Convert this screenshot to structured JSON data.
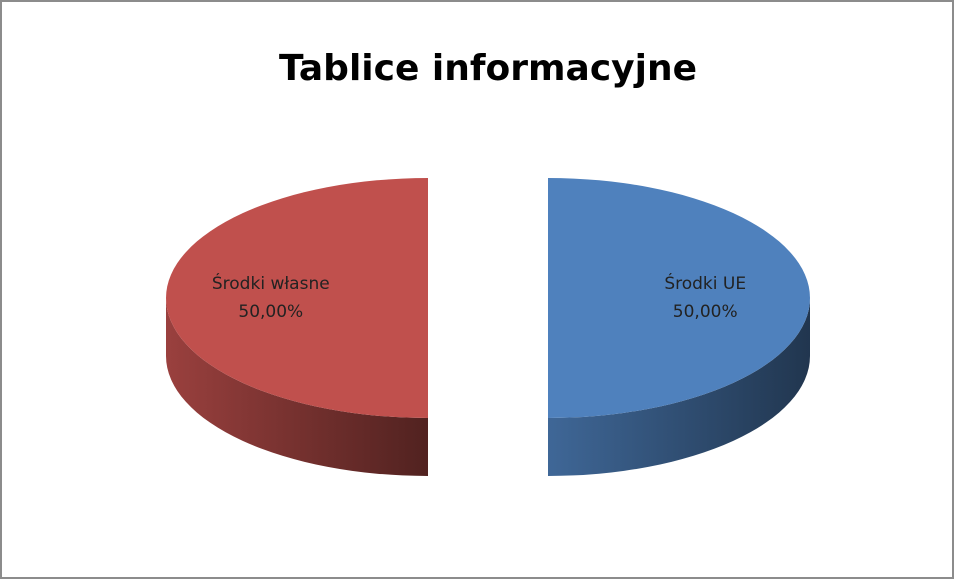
{
  "chart_data": {
    "type": "pie",
    "title": "Tablice informacyjne",
    "categories": [
      "Środki UE",
      "Środki własne"
    ],
    "values": [
      50,
      50
    ],
    "value_labels": [
      "50,00%",
      "50,00%"
    ],
    "colors": [
      "#4f81bd",
      "#c0504d"
    ]
  }
}
